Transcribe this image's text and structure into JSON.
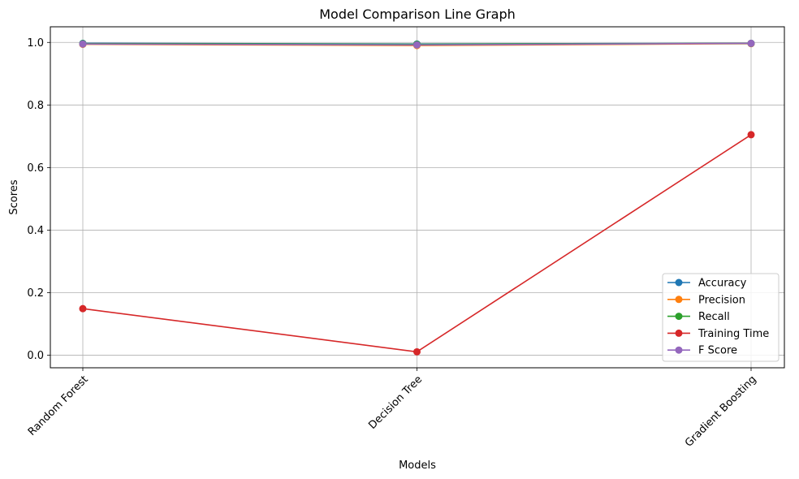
{
  "chart_data": {
    "type": "line",
    "title": "Model Comparison Line Graph",
    "xlabel": "Models",
    "ylabel": "Scores",
    "categories": [
      "Random Forest",
      "Decision Tree",
      "Gradient Boosting"
    ],
    "ylim": [
      -0.04,
      1.05
    ],
    "yticks": [
      0.0,
      0.2,
      0.4,
      0.6,
      0.8,
      1.0
    ],
    "ytick_labels": [
      "0.0",
      "0.2",
      "0.4",
      "0.6",
      "0.8",
      "1.0"
    ],
    "grid": true,
    "legend_position": "lower-right",
    "series": [
      {
        "name": "Accuracy",
        "color": "#1f77b4",
        "values": [
          0.997,
          0.995,
          0.997
        ]
      },
      {
        "name": "Precision",
        "color": "#ff7f0e",
        "values": [
          0.994,
          0.99,
          0.996
        ]
      },
      {
        "name": "Recall",
        "color": "#2ca02c",
        "values": [
          0.996,
          0.994,
          0.997
        ]
      },
      {
        "name": "Training Time",
        "color": "#d62728",
        "values": [
          0.149,
          0.011,
          0.705
        ]
      },
      {
        "name": "F Score",
        "color": "#9467bd",
        "values": [
          0.995,
          0.992,
          0.997
        ]
      }
    ]
  }
}
